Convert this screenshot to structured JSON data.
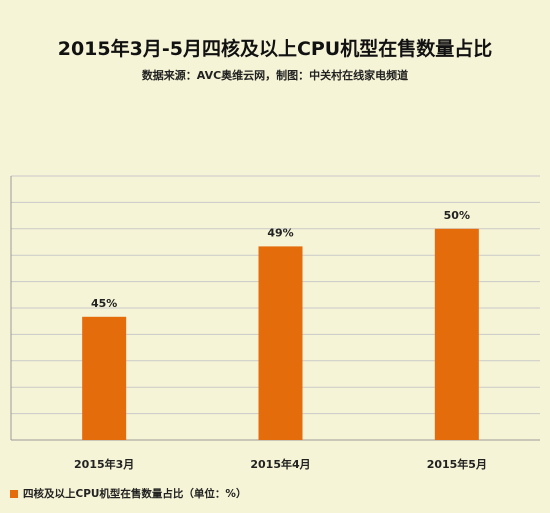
{
  "chart_data": {
    "type": "bar",
    "title": "2015年3月-5月四核及以上CPU机型在售数量占比",
    "subtitle": "数据来源：AVC奥维云网，制图：中关村在线家电频道",
    "categories": [
      "2015年3月",
      "2015年4月",
      "2015年5月"
    ],
    "values": [
      45,
      49,
      50
    ],
    "data_labels": [
      "45%",
      "49%",
      "50%"
    ],
    "series": [
      {
        "name": "四核及以上CPU机型在售数量占比（单位：%）",
        "values": [
          45,
          49,
          50
        ]
      }
    ],
    "ylim": [
      38,
      53
    ],
    "grid": true,
    "legend_position": "bottom-left",
    "bar_color": "#e46c0a",
    "grid_color": "#c9c9c9"
  }
}
